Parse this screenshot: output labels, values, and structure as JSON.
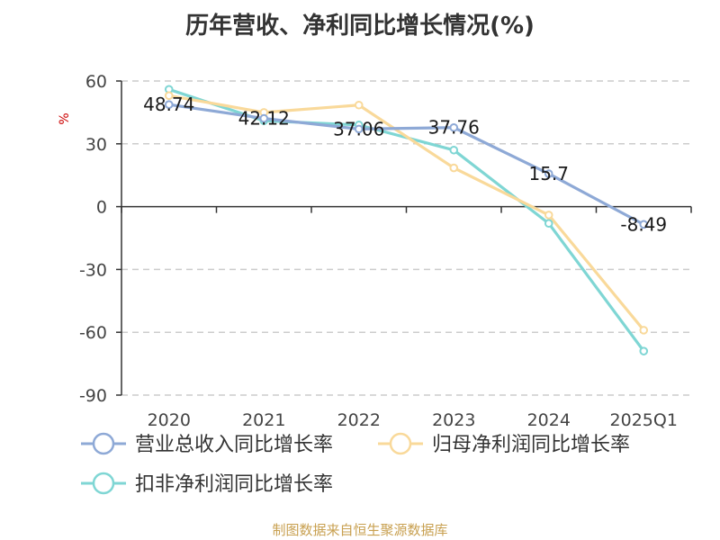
{
  "title": "历年营收、净利同比增长情况(%)",
  "source": "制图数据来自恒生聚源数据库",
  "colors": {
    "revenue": "#8ea9d6",
    "net_profit": "#f9d99a",
    "deducted_profit": "#7fd6d4",
    "grid": "#cccccc",
    "axis": "#333333",
    "unit": "#cc0000"
  },
  "chart_data": {
    "type": "line",
    "title": "历年营收、净利同比增长情况(%)",
    "ylabel": "%",
    "xlabel": "",
    "categories": [
      "2020",
      "2021",
      "2022",
      "2023",
      "2024",
      "2025Q1"
    ],
    "ylim": [
      -90,
      60
    ],
    "yticks": [
      60,
      30,
      0,
      -30,
      -60,
      -90
    ],
    "grid": true,
    "legend_position": "bottom",
    "series": [
      {
        "name": "营业总收入同比增长率",
        "color": "#8ea9d6",
        "values": [
          48.74,
          42.12,
          37.06,
          37.76,
          15.7,
          -8.49
        ],
        "labels": [
          "48.74",
          "42.12",
          "37.06",
          "37.76",
          "15.7",
          "-8.49"
        ]
      },
      {
        "name": "归母净利润同比增长率",
        "color": "#f9d99a",
        "values": [
          53.0,
          45.0,
          48.5,
          18.5,
          -4.0,
          -59.0
        ]
      },
      {
        "name": "扣非净利润同比增长率",
        "color": "#7fd6d4",
        "values": [
          56.0,
          41.0,
          39.0,
          27.0,
          -8.0,
          -69.0
        ]
      }
    ]
  }
}
